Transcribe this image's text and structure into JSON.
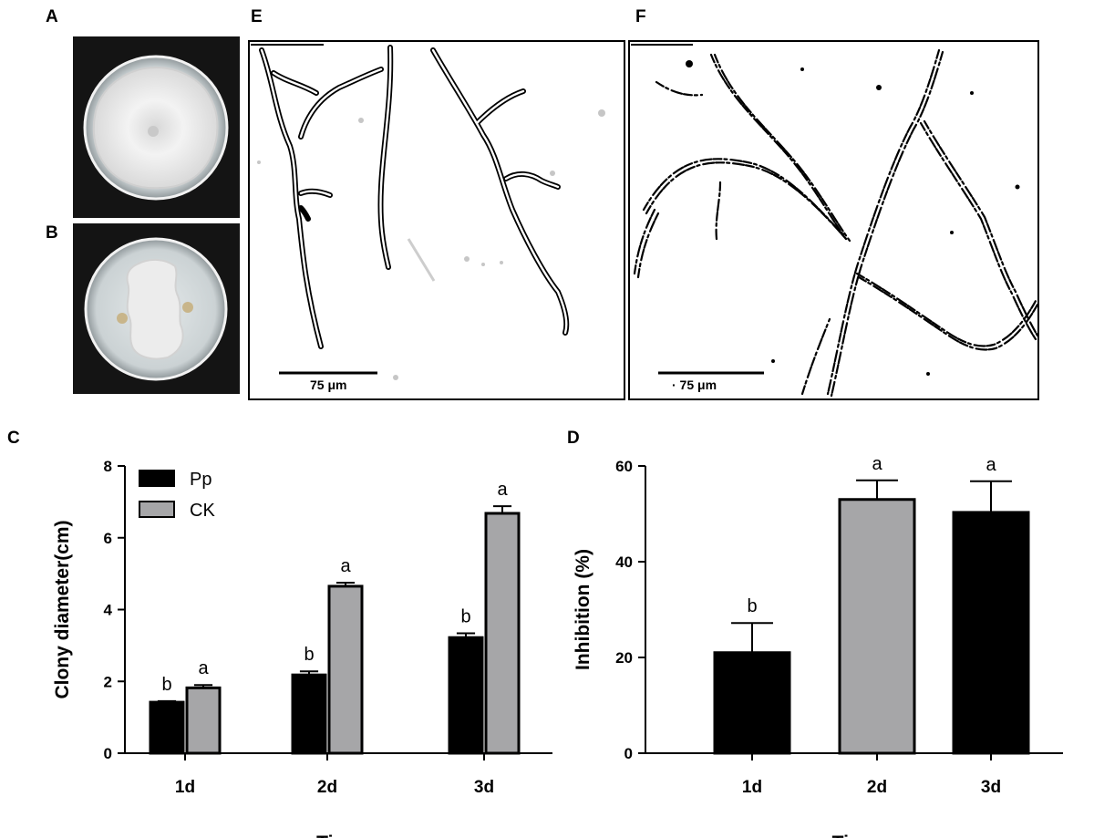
{
  "panels": {
    "A": {
      "label": "A"
    },
    "B": {
      "label": "B"
    },
    "C": {
      "label": "C"
    },
    "D": {
      "label": "D"
    },
    "E": {
      "label": "E",
      "scale_bar": "75 μm"
    },
    "F": {
      "label": "F",
      "scale_bar": "· 75 μm"
    }
  },
  "colors": {
    "pp": "#000000",
    "ck": "#a6a6a8",
    "dark_plate_bg": "#141414",
    "agar": "#d6dcde",
    "colony": "#eeeeee"
  },
  "chart_data": [
    {
      "type": "bar",
      "panel": "C",
      "categories": [
        "1d",
        "2d",
        "3d"
      ],
      "series": [
        {
          "name": "Pp",
          "values": [
            1.42,
            2.18,
            3.22
          ],
          "errors": [
            0.03,
            0.1,
            0.12
          ],
          "letters": [
            "b",
            "b",
            "b"
          ],
          "color": "#000000"
        },
        {
          "name": "CK",
          "values": [
            1.82,
            4.65,
            6.68
          ],
          "errors": [
            0.08,
            0.1,
            0.2
          ],
          "letters": [
            "a",
            "a",
            "a"
          ],
          "color": "#a6a6a8"
        }
      ],
      "ylim": [
        0,
        8
      ],
      "yticks": [
        0,
        2,
        4,
        6,
        8
      ],
      "xlabel": "Time",
      "ylabel": "Clony diameter(cm)",
      "legend": "top-left"
    },
    {
      "type": "bar",
      "panel": "D",
      "categories": [
        "1d",
        "2d",
        "3d"
      ],
      "values": [
        21,
        53,
        50.3
      ],
      "errors": [
        6.2,
        4,
        6.5
      ],
      "letters": [
        "b",
        "a",
        "a"
      ],
      "colors": [
        "#000000",
        "#a6a6a8",
        "#000000"
      ],
      "ylim": [
        0,
        60
      ],
      "yticks": [
        0,
        20,
        40,
        60
      ],
      "xlabel": "Time",
      "ylabel": "Inhibition (%)"
    }
  ]
}
